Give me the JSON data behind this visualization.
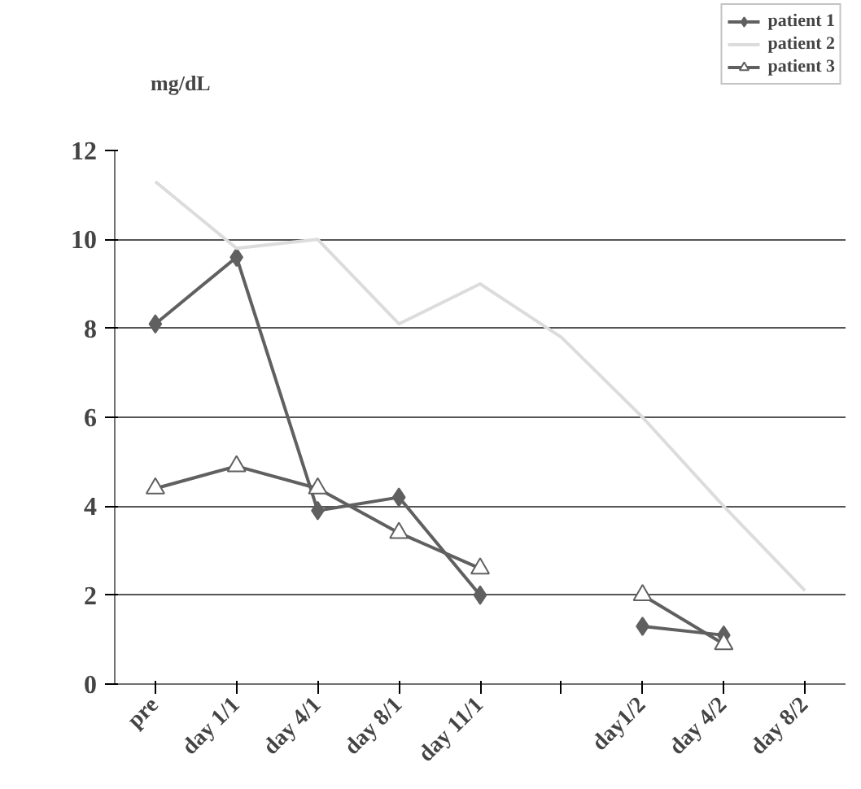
{
  "chart_data": {
    "type": "line",
    "ylabel": "mg/dL",
    "categories": [
      "pre",
      "day 1/1",
      "day 4/1",
      "day 8/1",
      "day 11/1",
      null,
      "day1/2",
      "day 4/2",
      "day 8/2"
    ],
    "ylim": [
      0,
      12
    ],
    "yticks": [
      0,
      2,
      4,
      6,
      8,
      10,
      12
    ],
    "grid": "y",
    "legend": "top right",
    "series": [
      {
        "name": "patient 1",
        "color": "#606060",
        "marker": "diamond",
        "values": [
          8.1,
          9.6,
          3.9,
          4.2,
          2.0,
          null,
          1.3,
          1.1,
          null
        ]
      },
      {
        "name": "patient 2",
        "color": "#dcdcdc",
        "marker": "none",
        "values": [
          11.3,
          9.8,
          10.0,
          8.1,
          9.0,
          7.8,
          6.0,
          4.0,
          2.1
        ]
      },
      {
        "name": "patient 3",
        "color": "#606060",
        "marker": "triangle",
        "values": [
          4.4,
          4.9,
          4.4,
          3.4,
          2.6,
          null,
          2.0,
          0.9,
          null
        ]
      }
    ]
  }
}
